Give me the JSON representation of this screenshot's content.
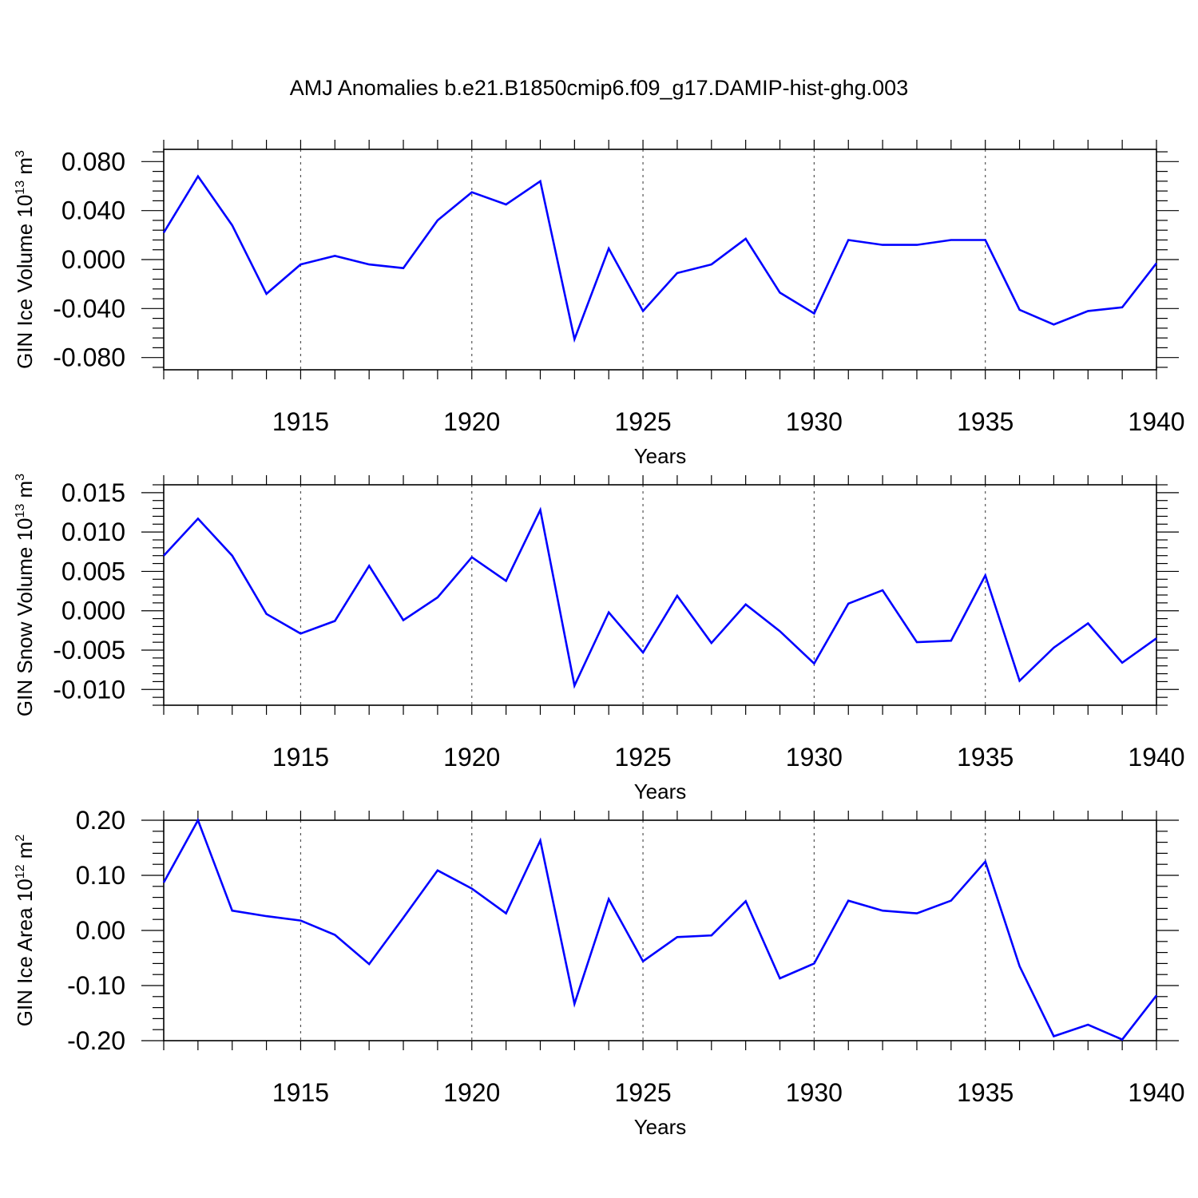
{
  "title": "AMJ Anomalies b.e21.B1850cmip6.f09_g17.DAMIP-hist-ghg.003",
  "colors": {
    "line": "#0000ff",
    "axis": "#000000",
    "grid": "#555555"
  },
  "chart_data": [
    {
      "type": "line",
      "title": "",
      "xlabel": "Years",
      "ylabel": "GIN Ice Volume 10",
      "ylabel_exp": "13",
      "ylabel_unit": " m",
      "ylabel_unit_exp": "3",
      "xlim": [
        1911,
        1940
      ],
      "ylim": [
        -0.09,
        0.09
      ],
      "xticks": [
        1915,
        1920,
        1925,
        1930,
        1935,
        1940
      ],
      "yticks": [
        -0.08,
        -0.04,
        0.0,
        0.04,
        0.08
      ],
      "yticklabels": [
        "-0.080",
        "-0.040",
        "0.000",
        "0.040",
        "0.080"
      ],
      "grid": "x-dotted",
      "x": [
        1911,
        1912,
        1913,
        1914,
        1915,
        1916,
        1917,
        1918,
        1919,
        1920,
        1921,
        1922,
        1923,
        1924,
        1925,
        1926,
        1927,
        1928,
        1929,
        1930,
        1931,
        1932,
        1933,
        1934,
        1935,
        1936,
        1937,
        1938,
        1939,
        1940
      ],
      "series": [
        {
          "values": [
            0.022,
            0.068,
            0.028,
            -0.028,
            -0.004,
            0.003,
            -0.004,
            -0.007,
            0.032,
            0.055,
            0.045,
            0.064,
            -0.065,
            0.009,
            -0.042,
            -0.011,
            -0.004,
            0.017,
            -0.027,
            -0.044,
            0.016,
            0.012,
            0.012,
            0.016,
            0.016,
            -0.041,
            -0.053,
            -0.042,
            -0.039,
            -0.003
          ]
        }
      ]
    },
    {
      "type": "line",
      "title": "",
      "xlabel": "Years",
      "ylabel": "GIN Snow Volume 10",
      "ylabel_exp": "13",
      "ylabel_unit": " m",
      "ylabel_unit_exp": "3",
      "xlim": [
        1911,
        1940
      ],
      "ylim": [
        -0.012,
        0.016
      ],
      "xticks": [
        1915,
        1920,
        1925,
        1930,
        1935,
        1940
      ],
      "yticks": [
        -0.01,
        -0.005,
        0.0,
        0.005,
        0.01,
        0.015
      ],
      "yticklabels": [
        "-0.010",
        "-0.005",
        "0.000",
        "0.005",
        "0.010",
        "0.015"
      ],
      "grid": "x-dotted",
      "x": [
        1911,
        1912,
        1913,
        1914,
        1915,
        1916,
        1917,
        1918,
        1919,
        1920,
        1921,
        1922,
        1923,
        1924,
        1925,
        1926,
        1927,
        1928,
        1929,
        1930,
        1931,
        1932,
        1933,
        1934,
        1935,
        1936,
        1937,
        1938,
        1939,
        1940
      ],
      "series": [
        {
          "values": [
            0.007,
            0.0117,
            0.007,
            -0.0004,
            -0.0029,
            -0.0013,
            0.0057,
            -0.0012,
            0.0017,
            0.0068,
            0.0038,
            0.0128,
            -0.0095,
            -0.0002,
            -0.0053,
            0.0019,
            -0.0041,
            0.0008,
            -0.0026,
            -0.0067,
            0.0009,
            0.0026,
            -0.004,
            -0.0038,
            0.0045,
            -0.0089,
            -0.0047,
            -0.0016,
            -0.0066,
            -0.0035
          ]
        }
      ]
    },
    {
      "type": "line",
      "title": "",
      "xlabel": "Years",
      "ylabel": "GIN Ice Area 10",
      "ylabel_exp": "12",
      "ylabel_unit": " m",
      "ylabel_unit_exp": "2",
      "xlim": [
        1911,
        1940
      ],
      "ylim": [
        -0.2,
        0.2
      ],
      "xticks": [
        1915,
        1920,
        1925,
        1930,
        1935,
        1940
      ],
      "yticks": [
        -0.2,
        -0.1,
        0.0,
        0.1,
        0.2
      ],
      "yticklabels": [
        "-0.20",
        "-0.10",
        "0.00",
        "0.10",
        "0.20"
      ],
      "grid": "x-dotted",
      "x": [
        1911,
        1912,
        1913,
        1914,
        1915,
        1916,
        1917,
        1918,
        1919,
        1920,
        1921,
        1922,
        1923,
        1924,
        1925,
        1926,
        1927,
        1928,
        1929,
        1930,
        1931,
        1932,
        1933,
        1934,
        1935,
        1936,
        1937,
        1938,
        1939,
        1940
      ],
      "series": [
        {
          "values": [
            0.087,
            0.2,
            0.036,
            0.026,
            0.018,
            -0.008,
            -0.061,
            0.023,
            0.109,
            0.076,
            0.031,
            0.163,
            -0.133,
            0.057,
            -0.056,
            -0.012,
            -0.009,
            0.053,
            -0.087,
            -0.06,
            0.054,
            0.036,
            0.031,
            0.054,
            0.125,
            -0.065,
            -0.192,
            -0.171,
            -0.198,
            -0.118
          ]
        }
      ]
    }
  ]
}
